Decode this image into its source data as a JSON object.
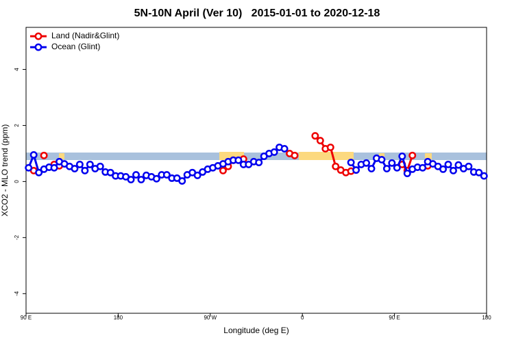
{
  "chart_data": {
    "type": "line",
    "title": "5N-10N April (Ver 10)   2015-01-01 to 2020-12-18",
    "x_label": "Longitude (deg E)",
    "y_label": "XCO2 - MLO trend (ppm)",
    "x": [
      92.5,
      97.5,
      102.5,
      107.5,
      112.5,
      117.5,
      122.5,
      127.5,
      132.5,
      137.5,
      142.5,
      147.5,
      152.5,
      157.5,
      162.5,
      167.5,
      172.5,
      177.5,
      182.5,
      187.5,
      192.5,
      197.5,
      202.5,
      207.5,
      212.5,
      217.5,
      222.5,
      227.5,
      232.5,
      237.5,
      242.5,
      247.5,
      252.5,
      257.5,
      262.5,
      267.5,
      272.5,
      277.5,
      282.5,
      287.5,
      292.5,
      297.5,
      302.5,
      307.5,
      312.5,
      317.5,
      322.5,
      327.5,
      332.5,
      337.5,
      342.5,
      347.5,
      352.5,
      357.5,
      362.5,
      367.5,
      372.5,
      377.5,
      382.5,
      387.5,
      392.5,
      397.5,
      402.5,
      407.5,
      412.5,
      417.5,
      422.5,
      427.5,
      432.5,
      437.5,
      442.5,
      447.5,
      452.5,
      457.5,
      462.5,
      467.5,
      472.5,
      477.5,
      482.5,
      487.5,
      492.5,
      497.5,
      502.5,
      507.5,
      512.5,
      517.5,
      522.5,
      527.5,
      532.5,
      537.5
    ],
    "series": [
      {
        "name": "Land (Nadir&Glint)",
        "color": "#ee0000",
        "values": [
          null,
          0.39,
          null,
          0.93,
          null,
          0.61,
          0.56,
          null,
          null,
          null,
          null,
          null,
          null,
          null,
          null,
          null,
          null,
          null,
          null,
          null,
          null,
          null,
          null,
          null,
          null,
          null,
          null,
          null,
          null,
          null,
          null,
          null,
          null,
          null,
          null,
          null,
          null,
          null,
          0.39,
          0.54,
          0.76,
          null,
          0.8,
          null,
          null,
          null,
          null,
          null,
          null,
          null,
          null,
          1.0,
          0.93,
          null,
          null,
          null,
          1.63,
          1.46,
          1.17,
          1.22,
          0.54,
          0.41,
          0.32,
          0.37,
          null,
          null,
          null,
          null,
          null,
          null,
          null,
          null,
          null,
          0.61,
          0.39,
          0.93,
          null,
          null,
          0.56,
          null,
          null,
          null,
          null,
          null,
          null,
          null,
          null,
          null,
          null,
          null
        ]
      },
      {
        "name": "Ocean (Glint)",
        "color": "#0000ee",
        "values": [
          0.49,
          0.95,
          0.32,
          0.44,
          0.51,
          0.49,
          0.71,
          0.63,
          0.54,
          0.46,
          0.61,
          0.39,
          0.61,
          0.46,
          0.54,
          0.34,
          0.32,
          0.2,
          0.2,
          0.17,
          0.07,
          0.24,
          0.07,
          0.22,
          0.17,
          0.1,
          0.24,
          0.24,
          0.12,
          0.12,
          0.02,
          0.24,
          0.32,
          0.22,
          0.34,
          0.44,
          0.49,
          0.56,
          0.63,
          0.71,
          0.76,
          0.76,
          0.61,
          0.61,
          0.71,
          0.68,
          0.9,
          1.0,
          1.05,
          1.22,
          1.17,
          null,
          null,
          null,
          null,
          null,
          null,
          null,
          null,
          null,
          null,
          null,
          null,
          0.68,
          0.41,
          0.61,
          0.66,
          0.46,
          0.83,
          0.78,
          0.46,
          0.66,
          0.49,
          0.9,
          0.29,
          0.44,
          0.51,
          0.49,
          0.71,
          0.63,
          0.54,
          0.44,
          0.61,
          0.39,
          0.59,
          0.46,
          0.54,
          0.34,
          0.32,
          0.2
        ]
      }
    ],
    "xlim": [
      90,
      540
    ],
    "xticks": [
      {
        "value": 90,
        "label": "90 E"
      },
      180,
      {
        "value": 270,
        "label": "90 W"
      },
      {
        "value": 360,
        "label": "0"
      },
      {
        "value": 450,
        "label": "90 E"
      },
      {
        "value": 540,
        "label": "180"
      }
    ],
    "ylim": [
      -4.7,
      5.5
    ],
    "yticks": [
      -4,
      -2,
      0,
      2,
      4
    ],
    "legend": "topleft"
  }
}
